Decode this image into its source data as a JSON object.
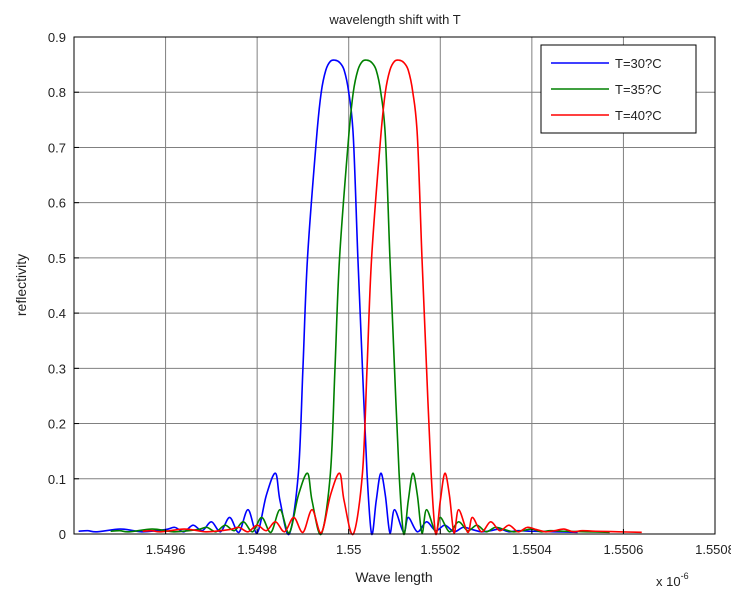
{
  "chart_data": {
    "type": "line",
    "title": "wavelength shift with T",
    "xlabel": "Wave length",
    "ylabel": "reflectivity",
    "x_multiplier": "x 10",
    "x_multiplier_exp": "-6",
    "xlim": [
      1.5494,
      1.5508
    ],
    "ylim": [
      0,
      0.9
    ],
    "x_ticks": [
      1.5496,
      1.5498,
      1.55,
      1.5502,
      1.5504,
      1.5506,
      1.5508
    ],
    "x_tick_labels": [
      "1.5496",
      "1.5498",
      "1.55",
      "1.5502",
      "1.5504",
      "1.5506",
      "1.5508"
    ],
    "y_ticks": [
      0,
      0.1,
      0.2,
      0.3,
      0.4,
      0.5,
      0.6,
      0.7,
      0.8,
      0.9
    ],
    "y_tick_labels": [
      "0",
      "0.1",
      "0.2",
      "0.3",
      "0.4",
      "0.5",
      "0.6",
      "0.7",
      "0.8",
      "0.9"
    ],
    "grid": true,
    "legend_position": "top-right",
    "series": [
      {
        "name": "T=30?C",
        "color": "#0000ff",
        "peak_center": 1.549987,
        "x": [
          1.54941,
          1.54943,
          1.54945,
          1.5495,
          1.54953,
          1.54955,
          1.5496,
          1.54962,
          1.54964,
          1.54966,
          1.54968,
          1.5497,
          1.54972,
          1.54974,
          1.54976,
          1.54978,
          1.5498,
          1.54982,
          1.54984,
          1.54985,
          1.54987,
          1.54989,
          1.5499,
          1.54991,
          1.54993,
          1.54994,
          1.54995,
          1.54996,
          1.54997,
          1.54998,
          1.54999,
          1.55,
          1.55001,
          1.55002,
          1.55003,
          1.55004,
          1.55005,
          1.55006,
          1.55007,
          1.55008,
          1.55009,
          1.5501,
          1.55012,
          1.55013,
          1.55015,
          1.55017,
          1.55019,
          1.55021,
          1.55023,
          1.55025,
          1.55027,
          1.55029,
          1.55031,
          1.55033,
          1.55035,
          1.55037,
          1.5504,
          1.55045,
          1.5505
        ],
        "y": [
          0.005,
          0.006,
          0.004,
          0.009,
          0.006,
          0.004,
          0.008,
          0.012,
          0.004,
          0.016,
          0.006,
          0.022,
          0.004,
          0.03,
          0.003,
          0.044,
          0.002,
          0.07,
          0.11,
          0.06,
          0.0,
          0.11,
          0.3,
          0.5,
          0.72,
          0.8,
          0.84,
          0.856,
          0.858,
          0.854,
          0.84,
          0.8,
          0.72,
          0.5,
          0.3,
          0.11,
          0.0,
          0.06,
          0.11,
          0.07,
          0.002,
          0.044,
          0.003,
          0.03,
          0.004,
          0.022,
          0.006,
          0.016,
          0.004,
          0.012,
          0.008,
          0.004,
          0.006,
          0.009,
          0.004,
          0.006,
          0.005,
          0.004,
          0.003
        ]
      },
      {
        "name": "T=35?C",
        "color": "#008000",
        "peak_center": 1.550058,
        "x": [
          1.54948,
          1.5495,
          1.54952,
          1.54957,
          1.5496,
          1.54962,
          1.54967,
          1.54969,
          1.54971,
          1.54973,
          1.54975,
          1.54977,
          1.54979,
          1.54981,
          1.54983,
          1.54985,
          1.54987,
          1.54989,
          1.54991,
          1.54992,
          1.54994,
          1.54996,
          1.54997,
          1.54998,
          1.55,
          1.55001,
          1.55002,
          1.55003,
          1.55004,
          1.55005,
          1.55006,
          1.55007,
          1.55008,
          1.55009,
          1.5501,
          1.55011,
          1.55012,
          1.55013,
          1.55014,
          1.55015,
          1.55016,
          1.55017,
          1.55019,
          1.5502,
          1.55022,
          1.55024,
          1.55026,
          1.55028,
          1.5503,
          1.55032,
          1.55034,
          1.55036,
          1.55038,
          1.5504,
          1.55042,
          1.55044,
          1.55047,
          1.55052,
          1.55057
        ],
        "y": [
          0.005,
          0.006,
          0.004,
          0.009,
          0.006,
          0.004,
          0.008,
          0.012,
          0.004,
          0.016,
          0.006,
          0.022,
          0.004,
          0.03,
          0.003,
          0.044,
          0.002,
          0.07,
          0.11,
          0.06,
          0.0,
          0.11,
          0.3,
          0.5,
          0.72,
          0.8,
          0.84,
          0.856,
          0.858,
          0.854,
          0.84,
          0.8,
          0.72,
          0.5,
          0.3,
          0.11,
          0.0,
          0.06,
          0.11,
          0.07,
          0.002,
          0.044,
          0.003,
          0.03,
          0.004,
          0.022,
          0.006,
          0.016,
          0.004,
          0.012,
          0.008,
          0.004,
          0.006,
          0.009,
          0.004,
          0.006,
          0.005,
          0.004,
          0.003
        ]
      },
      {
        "name": "T=40?C",
        "color": "#ff0000",
        "peak_center": 1.550128,
        "x": [
          1.54955,
          1.54957,
          1.54959,
          1.54964,
          1.54967,
          1.54969,
          1.54974,
          1.54976,
          1.54978,
          1.5498,
          1.54982,
          1.54984,
          1.54986,
          1.54988,
          1.5499,
          1.54992,
          1.54994,
          1.54996,
          1.54998,
          1.54999,
          1.55001,
          1.55003,
          1.55004,
          1.55005,
          1.55007,
          1.55008,
          1.55009,
          1.5501,
          1.55011,
          1.55012,
          1.55013,
          1.55014,
          1.55015,
          1.55016,
          1.55017,
          1.55018,
          1.55019,
          1.5502,
          1.55021,
          1.55022,
          1.55023,
          1.55024,
          1.55026,
          1.55027,
          1.55029,
          1.55031,
          1.55033,
          1.55035,
          1.55037,
          1.55039,
          1.55041,
          1.55043,
          1.55045,
          1.55047,
          1.55049,
          1.55051,
          1.55054,
          1.55059,
          1.55064
        ],
        "y": [
          0.005,
          0.006,
          0.004,
          0.009,
          0.006,
          0.004,
          0.008,
          0.012,
          0.004,
          0.016,
          0.006,
          0.022,
          0.004,
          0.03,
          0.003,
          0.044,
          0.002,
          0.07,
          0.11,
          0.06,
          0.0,
          0.11,
          0.3,
          0.5,
          0.72,
          0.8,
          0.84,
          0.856,
          0.858,
          0.854,
          0.84,
          0.8,
          0.72,
          0.5,
          0.3,
          0.11,
          0.0,
          0.06,
          0.11,
          0.07,
          0.002,
          0.044,
          0.003,
          0.03,
          0.004,
          0.022,
          0.006,
          0.016,
          0.004,
          0.012,
          0.008,
          0.004,
          0.006,
          0.009,
          0.004,
          0.006,
          0.005,
          0.004,
          0.003
        ]
      }
    ]
  }
}
